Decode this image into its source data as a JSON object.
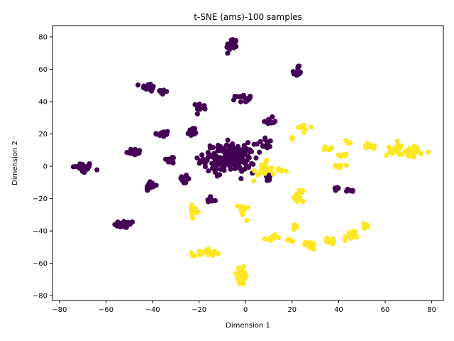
{
  "chart_data": {
    "type": "scatter",
    "title": "t-SNE (ams)-100 samples",
    "xlabel": "Dimension 1",
    "ylabel": "Dimension 2",
    "xlim": [
      -83,
      85
    ],
    "ylim": [
      -83,
      87
    ],
    "xticks": [
      -80,
      -60,
      -40,
      -20,
      0,
      20,
      40,
      60,
      80
    ],
    "yticks": [
      -80,
      -60,
      -40,
      -20,
      0,
      20,
      40,
      60,
      80
    ],
    "grid": false,
    "legend": "none",
    "colors": {
      "class0": "#440154",
      "class1": "#fde725"
    },
    "series": [
      {
        "class": 0,
        "clusters": [
          {
            "x": -70,
            "y": -1,
            "rx": 4,
            "ry": 3,
            "n": 34
          },
          {
            "x": -52,
            "y": -36,
            "rx": 4,
            "ry": 2,
            "n": 24
          },
          {
            "x": -48,
            "y": 9,
            "rx": 3,
            "ry": 2,
            "n": 18
          },
          {
            "x": -42,
            "y": 49,
            "rx": 3,
            "ry": 2,
            "n": 18
          },
          {
            "x": -36,
            "y": 46,
            "rx": 2,
            "ry": 2,
            "n": 10
          },
          {
            "x": -41,
            "y": -12,
            "rx": 2,
            "ry": 3,
            "n": 18
          },
          {
            "x": -36,
            "y": 20,
            "rx": 3,
            "ry": 2,
            "n": 14
          },
          {
            "x": -32,
            "y": 4,
            "rx": 2,
            "ry": 2,
            "n": 14
          },
          {
            "x": -23,
            "y": 21,
            "rx": 2,
            "ry": 3,
            "n": 14
          },
          {
            "x": -26,
            "y": -8,
            "rx": 2,
            "ry": 3,
            "n": 14
          },
          {
            "x": -19,
            "y": 37,
            "rx": 2,
            "ry": 2,
            "n": 14
          },
          {
            "x": -6,
            "y": 75,
            "rx": 2,
            "ry": 4,
            "n": 26
          },
          {
            "x": 22,
            "y": 58,
            "rx": 2,
            "ry": 3,
            "n": 18
          },
          {
            "x": -1,
            "y": 42,
            "rx": 3,
            "ry": 2,
            "n": 18
          },
          {
            "x": 10,
            "y": 28,
            "rx": 2,
            "ry": 2,
            "n": 12
          },
          {
            "x": -7,
            "y": 5,
            "rx": 10,
            "ry": 8,
            "n": 190
          },
          {
            "x": 9,
            "y": 14,
            "rx": 3,
            "ry": 3,
            "n": 12
          },
          {
            "x": 10,
            "y": -7,
            "rx": 2,
            "ry": 3,
            "n": 12
          },
          {
            "x": -15,
            "y": -21,
            "rx": 2,
            "ry": 2,
            "n": 8
          },
          {
            "x": 39,
            "y": -14,
            "rx": 2,
            "ry": 1,
            "n": 6
          },
          {
            "x": 45,
            "y": -15,
            "rx": 2,
            "ry": 1,
            "n": 10
          }
        ]
      },
      {
        "class": 1,
        "clusters": [
          {
            "x": 25,
            "y": 24,
            "rx": 3,
            "ry": 2,
            "n": 12
          },
          {
            "x": 20,
            "y": 17,
            "rx": 1,
            "ry": 1,
            "n": 3
          },
          {
            "x": 36,
            "y": 11,
            "rx": 2,
            "ry": 1,
            "n": 10
          },
          {
            "x": 44,
            "y": 15,
            "rx": 1,
            "ry": 1,
            "n": 4
          },
          {
            "x": 42,
            "y": 7,
            "rx": 2,
            "ry": 1,
            "n": 6
          },
          {
            "x": 40,
            "y": 0,
            "rx": 2,
            "ry": 1,
            "n": 6
          },
          {
            "x": 53,
            "y": 12,
            "rx": 2,
            "ry": 2,
            "n": 12
          },
          {
            "x": 64,
            "y": 11,
            "rx": 3,
            "ry": 4,
            "n": 20
          },
          {
            "x": 72,
            "y": 9,
            "rx": 4,
            "ry": 3,
            "n": 28
          },
          {
            "x": 23,
            "y": -19,
            "rx": 2,
            "ry": 5,
            "n": 16
          },
          {
            "x": 21,
            "y": -37,
            "rx": 1,
            "ry": 1,
            "n": 6
          },
          {
            "x": 19,
            "y": -46,
            "rx": 1,
            "ry": 1,
            "n": 4
          },
          {
            "x": 11,
            "y": -44,
            "rx": 2,
            "ry": 2,
            "n": 10
          },
          {
            "x": 28,
            "y": -49,
            "rx": 2,
            "ry": 2,
            "n": 12
          },
          {
            "x": 37,
            "y": -46,
            "rx": 2,
            "ry": 2,
            "n": 10
          },
          {
            "x": 45,
            "y": -44,
            "rx": 2,
            "ry": 4,
            "n": 14
          },
          {
            "x": 51,
            "y": -37,
            "rx": 2,
            "ry": 2,
            "n": 10
          },
          {
            "x": -1,
            "y": -27,
            "rx": 2,
            "ry": 4,
            "n": 14
          },
          {
            "x": -2,
            "y": -68,
            "rx": 3,
            "ry": 5,
            "n": 40
          },
          {
            "x": -17,
            "y": -53,
            "rx": 5,
            "ry": 2,
            "n": 26
          },
          {
            "x": -22,
            "y": -28,
            "rx": 2,
            "ry": 3,
            "n": 12
          },
          {
            "x": 7,
            "y": -3,
            "rx": 4,
            "ry": 5,
            "n": 20
          },
          {
            "x": 15,
            "y": -3,
            "rx": 2,
            "ry": 2,
            "n": 6
          }
        ]
      }
    ]
  }
}
